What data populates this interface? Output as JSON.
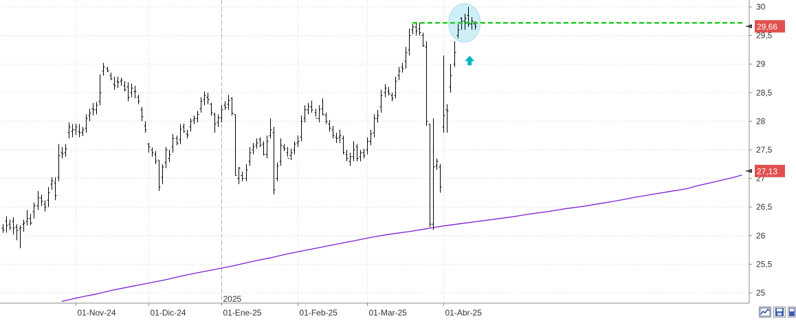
{
  "chart_data": {
    "type": "ohlc-bar",
    "colors": {
      "bars": "#000000",
      "moving_average": "#7a1fd6",
      "resistance": "#22cc22",
      "highlight": "#cfeff6",
      "arrow": "#00b8c8",
      "price_tag": "#e05050",
      "grid": "#c8c8c8"
    },
    "ylim": [
      24.8,
      30.1
    ],
    "y_ticks": [
      {
        "value": 25,
        "label": "25"
      },
      {
        "value": 25.5,
        "label": "25,5"
      },
      {
        "value": 26,
        "label": "26"
      },
      {
        "value": 26.5,
        "label": "26,5"
      },
      {
        "value": 27,
        "label": "27"
      },
      {
        "value": 27.5,
        "label": "27,5"
      },
      {
        "value": 28,
        "label": "28"
      },
      {
        "value": 28.5,
        "label": "28,5"
      },
      {
        "value": 29,
        "label": "29"
      },
      {
        "value": 29.5,
        "label": "29,5"
      },
      {
        "value": 30,
        "label": "30"
      }
    ],
    "x_ticks": [
      {
        "index": 21,
        "label": "01-Nov-24"
      },
      {
        "index": 42,
        "label": "01-Dic-24"
      },
      {
        "index": 63,
        "label": "01-Ene-25"
      },
      {
        "index": 85,
        "label": "01-Feb-25"
      },
      {
        "index": 105,
        "label": "01-Mar-25"
      },
      {
        "index": 127,
        "label": "01-Abr-25"
      }
    ],
    "year_marker": {
      "index": 63,
      "label": "2025"
    },
    "series": [
      {
        "kind": "ohlc",
        "points": [
          [
            26.13,
            26.05,
            26.1,
            26.2
          ],
          [
            26.25,
            26.05,
            26.18,
            26.34
          ],
          [
            26.2,
            26.1,
            26.14,
            26.28
          ],
          [
            26.25,
            26.02,
            26.13,
            26.32
          ],
          [
            26.15,
            25.92,
            26.09,
            26.2
          ],
          [
            26.12,
            25.78,
            26.14,
            26.18
          ],
          [
            26.2,
            26.07,
            26.22,
            26.28
          ],
          [
            26.25,
            26.18,
            26.3,
            26.45
          ],
          [
            26.3,
            26.18,
            26.22,
            26.38
          ],
          [
            26.42,
            26.3,
            26.52,
            26.58
          ],
          [
            26.52,
            26.45,
            26.66,
            26.78
          ],
          [
            26.66,
            26.52,
            26.6,
            26.72
          ],
          [
            26.55,
            26.42,
            26.5,
            26.62
          ],
          [
            26.62,
            26.5,
            26.75,
            26.85
          ],
          [
            26.9,
            26.8,
            26.96,
            27.02
          ],
          [
            26.92,
            26.62,
            26.7,
            27.02
          ],
          [
            27.02,
            26.95,
            27.4,
            27.6
          ],
          [
            27.45,
            27.35,
            27.43,
            27.55
          ],
          [
            27.45,
            27.38,
            27.52,
            27.6
          ],
          [
            27.8,
            27.7,
            27.9,
            27.98
          ],
          [
            27.82,
            27.72,
            27.85,
            27.95
          ],
          [
            27.85,
            27.76,
            27.9,
            27.96
          ],
          [
            27.82,
            27.72,
            27.8,
            27.95
          ],
          [
            27.8,
            27.74,
            27.85,
            27.9
          ],
          [
            27.88,
            27.8,
            28.05,
            28.12
          ],
          [
            28.1,
            28.0,
            28.14,
            28.22
          ],
          [
            28.22,
            28.1,
            28.2,
            28.32
          ],
          [
            28.2,
            28.12,
            28.28,
            28.34
          ],
          [
            28.35,
            28.28,
            28.5,
            28.82
          ],
          [
            28.88,
            28.8,
            28.95,
            29.02
          ],
          [
            28.92,
            28.86,
            28.88,
            28.95
          ],
          [
            28.8,
            28.72,
            28.74,
            28.85
          ],
          [
            28.65,
            28.55,
            28.62,
            28.78
          ],
          [
            28.7,
            28.58,
            28.68,
            28.78
          ],
          [
            28.7,
            28.62,
            28.72,
            28.76
          ],
          [
            28.62,
            28.52,
            28.55,
            28.7
          ],
          [
            28.6,
            28.35,
            28.42,
            28.68
          ],
          [
            28.5,
            28.42,
            28.58,
            28.66
          ],
          [
            28.52,
            28.4,
            28.52,
            28.62
          ],
          [
            28.42,
            28.3,
            28.35,
            28.46
          ],
          [
            28.2,
            28.0,
            28.08,
            28.25
          ],
          [
            27.92,
            27.8,
            27.85,
            28.0
          ],
          [
            27.6,
            27.45,
            27.55,
            27.62
          ],
          [
            27.5,
            27.38,
            27.45,
            27.54
          ],
          [
            27.42,
            27.25,
            27.3,
            27.48
          ],
          [
            27.32,
            26.78,
            26.85,
            27.32
          ],
          [
            27.02,
            26.9,
            27.2,
            27.25
          ],
          [
            27.28,
            27.18,
            27.5,
            27.55
          ],
          [
            27.35,
            27.28,
            27.42,
            27.5
          ],
          [
            27.55,
            27.45,
            27.7,
            27.78
          ],
          [
            27.7,
            27.58,
            27.62,
            27.75
          ],
          [
            27.68,
            27.6,
            27.86,
            27.95
          ],
          [
            27.9,
            27.8,
            27.82,
            27.96
          ],
          [
            27.78,
            27.7,
            27.76,
            27.85
          ],
          [
            27.9,
            27.82,
            28.0,
            28.05
          ],
          [
            28.02,
            27.95,
            28.05,
            28.1
          ],
          [
            28.05,
            27.98,
            28.12,
            28.18
          ],
          [
            28.22,
            28.15,
            28.35,
            28.42
          ],
          [
            28.38,
            28.28,
            28.45,
            28.52
          ],
          [
            28.42,
            28.3,
            28.38,
            28.5
          ],
          [
            28.3,
            28.1,
            28.15,
            28.32
          ],
          [
            28.12,
            27.8,
            27.95,
            28.15
          ],
          [
            27.98,
            27.9,
            28.06,
            28.12
          ],
          [
            28.06,
            27.98,
            28.2,
            28.28
          ],
          [
            28.28,
            28.2,
            28.24,
            28.35
          ],
          [
            28.3,
            28.2,
            28.36,
            28.46
          ],
          [
            28.4,
            28.1,
            28.14,
            28.42
          ],
          [
            28.12,
            27.05,
            27.05,
            28.12
          ],
          [
            27.0,
            26.9,
            27.18,
            27.2
          ],
          [
            27.05,
            26.95,
            27.0,
            27.12
          ],
          [
            27.0,
            26.95,
            27.15,
            27.25
          ],
          [
            27.3,
            27.22,
            27.45,
            27.55
          ],
          [
            27.5,
            27.42,
            27.55,
            27.62
          ],
          [
            27.58,
            27.52,
            27.62,
            27.7
          ],
          [
            27.68,
            27.55,
            27.58,
            27.72
          ],
          [
            27.6,
            27.4,
            27.42,
            27.65
          ],
          [
            27.42,
            27.35,
            27.65,
            27.75
          ],
          [
            27.75,
            27.7,
            27.85,
            28.05
          ],
          [
            27.8,
            26.72,
            26.8,
            27.9
          ],
          [
            27.0,
            26.95,
            27.22,
            27.28
          ],
          [
            27.3,
            27.22,
            27.58,
            27.7
          ],
          [
            27.55,
            27.48,
            27.52,
            27.6
          ],
          [
            27.45,
            27.38,
            27.35,
            27.55
          ],
          [
            27.4,
            27.32,
            27.45,
            27.52
          ],
          [
            27.5,
            27.42,
            27.6,
            27.65
          ],
          [
            27.62,
            27.55,
            27.65,
            27.75
          ],
          [
            27.72,
            27.65,
            28.0,
            28.1
          ],
          [
            28.05,
            27.98,
            28.2,
            28.28
          ],
          [
            28.2,
            28.12,
            28.26,
            28.32
          ],
          [
            28.25,
            28.15,
            28.2,
            28.36
          ],
          [
            28.15,
            28.08,
            28.05,
            28.22
          ],
          [
            28.05,
            27.98,
            28.2,
            28.28
          ],
          [
            28.22,
            28.1,
            28.12,
            28.4
          ],
          [
            28.1,
            27.95,
            28.0,
            28.15
          ],
          [
            27.95,
            27.82,
            27.88,
            28.02
          ],
          [
            27.85,
            27.7,
            27.75,
            27.92
          ],
          [
            27.72,
            27.62,
            27.7,
            27.8
          ],
          [
            27.72,
            27.62,
            27.75,
            27.85
          ],
          [
            27.7,
            27.42,
            27.45,
            27.75
          ],
          [
            27.42,
            27.3,
            27.35,
            27.5
          ],
          [
            27.3,
            27.22,
            27.38,
            27.45
          ],
          [
            27.38,
            27.3,
            27.5,
            27.65
          ],
          [
            27.55,
            27.3,
            27.35,
            27.6
          ],
          [
            27.38,
            27.3,
            27.45,
            27.5
          ],
          [
            27.45,
            27.35,
            27.4,
            27.52
          ],
          [
            27.5,
            27.42,
            27.65,
            27.72
          ],
          [
            27.65,
            27.58,
            27.78,
            27.85
          ],
          [
            27.8,
            27.72,
            28.05,
            28.12
          ],
          [
            28.05,
            27.98,
            28.1,
            28.2
          ],
          [
            28.25,
            28.15,
            28.45,
            28.55
          ],
          [
            28.5,
            28.42,
            28.58,
            28.65
          ],
          [
            28.52,
            28.45,
            28.48,
            28.6
          ],
          [
            28.45,
            28.35,
            28.4,
            28.5
          ],
          [
            28.45,
            28.4,
            28.7,
            28.78
          ],
          [
            28.8,
            28.72,
            28.88,
            28.95
          ],
          [
            28.95,
            28.85,
            28.92,
            29.02
          ],
          [
            29.05,
            28.92,
            29.2,
            29.3
          ],
          [
            29.25,
            29.15,
            29.5,
            29.62
          ],
          [
            29.6,
            29.52,
            29.65,
            29.7
          ],
          [
            29.65,
            29.5,
            29.58,
            29.72
          ],
          [
            29.62,
            29.5,
            29.55,
            29.72
          ],
          [
            29.5,
            29.3,
            29.32,
            29.55
          ],
          [
            29.3,
            27.92,
            28.0,
            29.4
          ],
          [
            27.95,
            26.15,
            26.2,
            27.95
          ],
          [
            26.2,
            26.1,
            27.2,
            28.05
          ],
          [
            27.22,
            27.15,
            27.3,
            27.35
          ],
          [
            27.2,
            26.75,
            26.85,
            27.25
          ],
          [
            27.9,
            27.8,
            28.1,
            29.15
          ],
          [
            28.2,
            27.8,
            28.18,
            28.3
          ],
          [
            28.6,
            28.5,
            28.8,
            29.0
          ],
          [
            29.0,
            28.95,
            29.2,
            29.4
          ],
          [
            29.5,
            29.45,
            29.6,
            29.7
          ],
          [
            29.8,
            29.6,
            29.75,
            29.82
          ],
          [
            29.75,
            29.6,
            29.8,
            29.88
          ],
          [
            29.85,
            29.65,
            29.7,
            30.0
          ],
          [
            29.7,
            29.6,
            29.75,
            29.82
          ],
          [
            29.7,
            29.6,
            29.66,
            29.75
          ]
        ]
      },
      {
        "kind": "line",
        "points": [
          [
            17,
            24.85
          ],
          [
            22,
            24.92
          ],
          [
            27,
            24.98
          ],
          [
            32,
            25.05
          ],
          [
            37,
            25.11
          ],
          [
            42,
            25.17
          ],
          [
            47,
            25.23
          ],
          [
            52,
            25.3
          ],
          [
            57,
            25.36
          ],
          [
            62,
            25.42
          ],
          [
            67,
            25.48
          ],
          [
            72,
            25.55
          ],
          [
            77,
            25.61
          ],
          [
            82,
            25.68
          ],
          [
            87,
            25.74
          ],
          [
            92,
            25.8
          ],
          [
            97,
            25.86
          ],
          [
            102,
            25.92
          ],
          [
            107,
            25.98
          ],
          [
            112,
            26.03
          ],
          [
            117,
            26.07
          ],
          [
            122,
            26.12
          ],
          [
            127,
            26.17
          ],
          [
            132,
            26.21
          ],
          [
            137,
            26.25
          ],
          [
            142,
            26.29
          ],
          [
            147,
            26.33
          ],
          [
            152,
            26.38
          ],
          [
            157,
            26.42
          ],
          [
            162,
            26.47
          ],
          [
            167,
            26.51
          ],
          [
            172,
            26.56
          ],
          [
            177,
            26.61
          ],
          [
            182,
            26.67
          ],
          [
            187,
            26.72
          ],
          [
            192,
            26.77
          ],
          [
            197,
            26.82
          ],
          [
            200,
            26.87
          ],
          [
            205,
            26.94
          ],
          [
            210,
            27.01
          ],
          [
            213,
            27.06
          ]
        ]
      }
    ],
    "resistance_line": {
      "value": 29.72,
      "from_index": 118,
      "to_index": 140
    },
    "price_labels": [
      {
        "value": 29.66,
        "label": "29,66"
      },
      {
        "value": 27.13,
        "label": "27,13"
      }
    ]
  },
  "status_bar": {
    "icons": [
      "chart-scale-icon",
      "save-icon",
      "disk-icon"
    ]
  }
}
